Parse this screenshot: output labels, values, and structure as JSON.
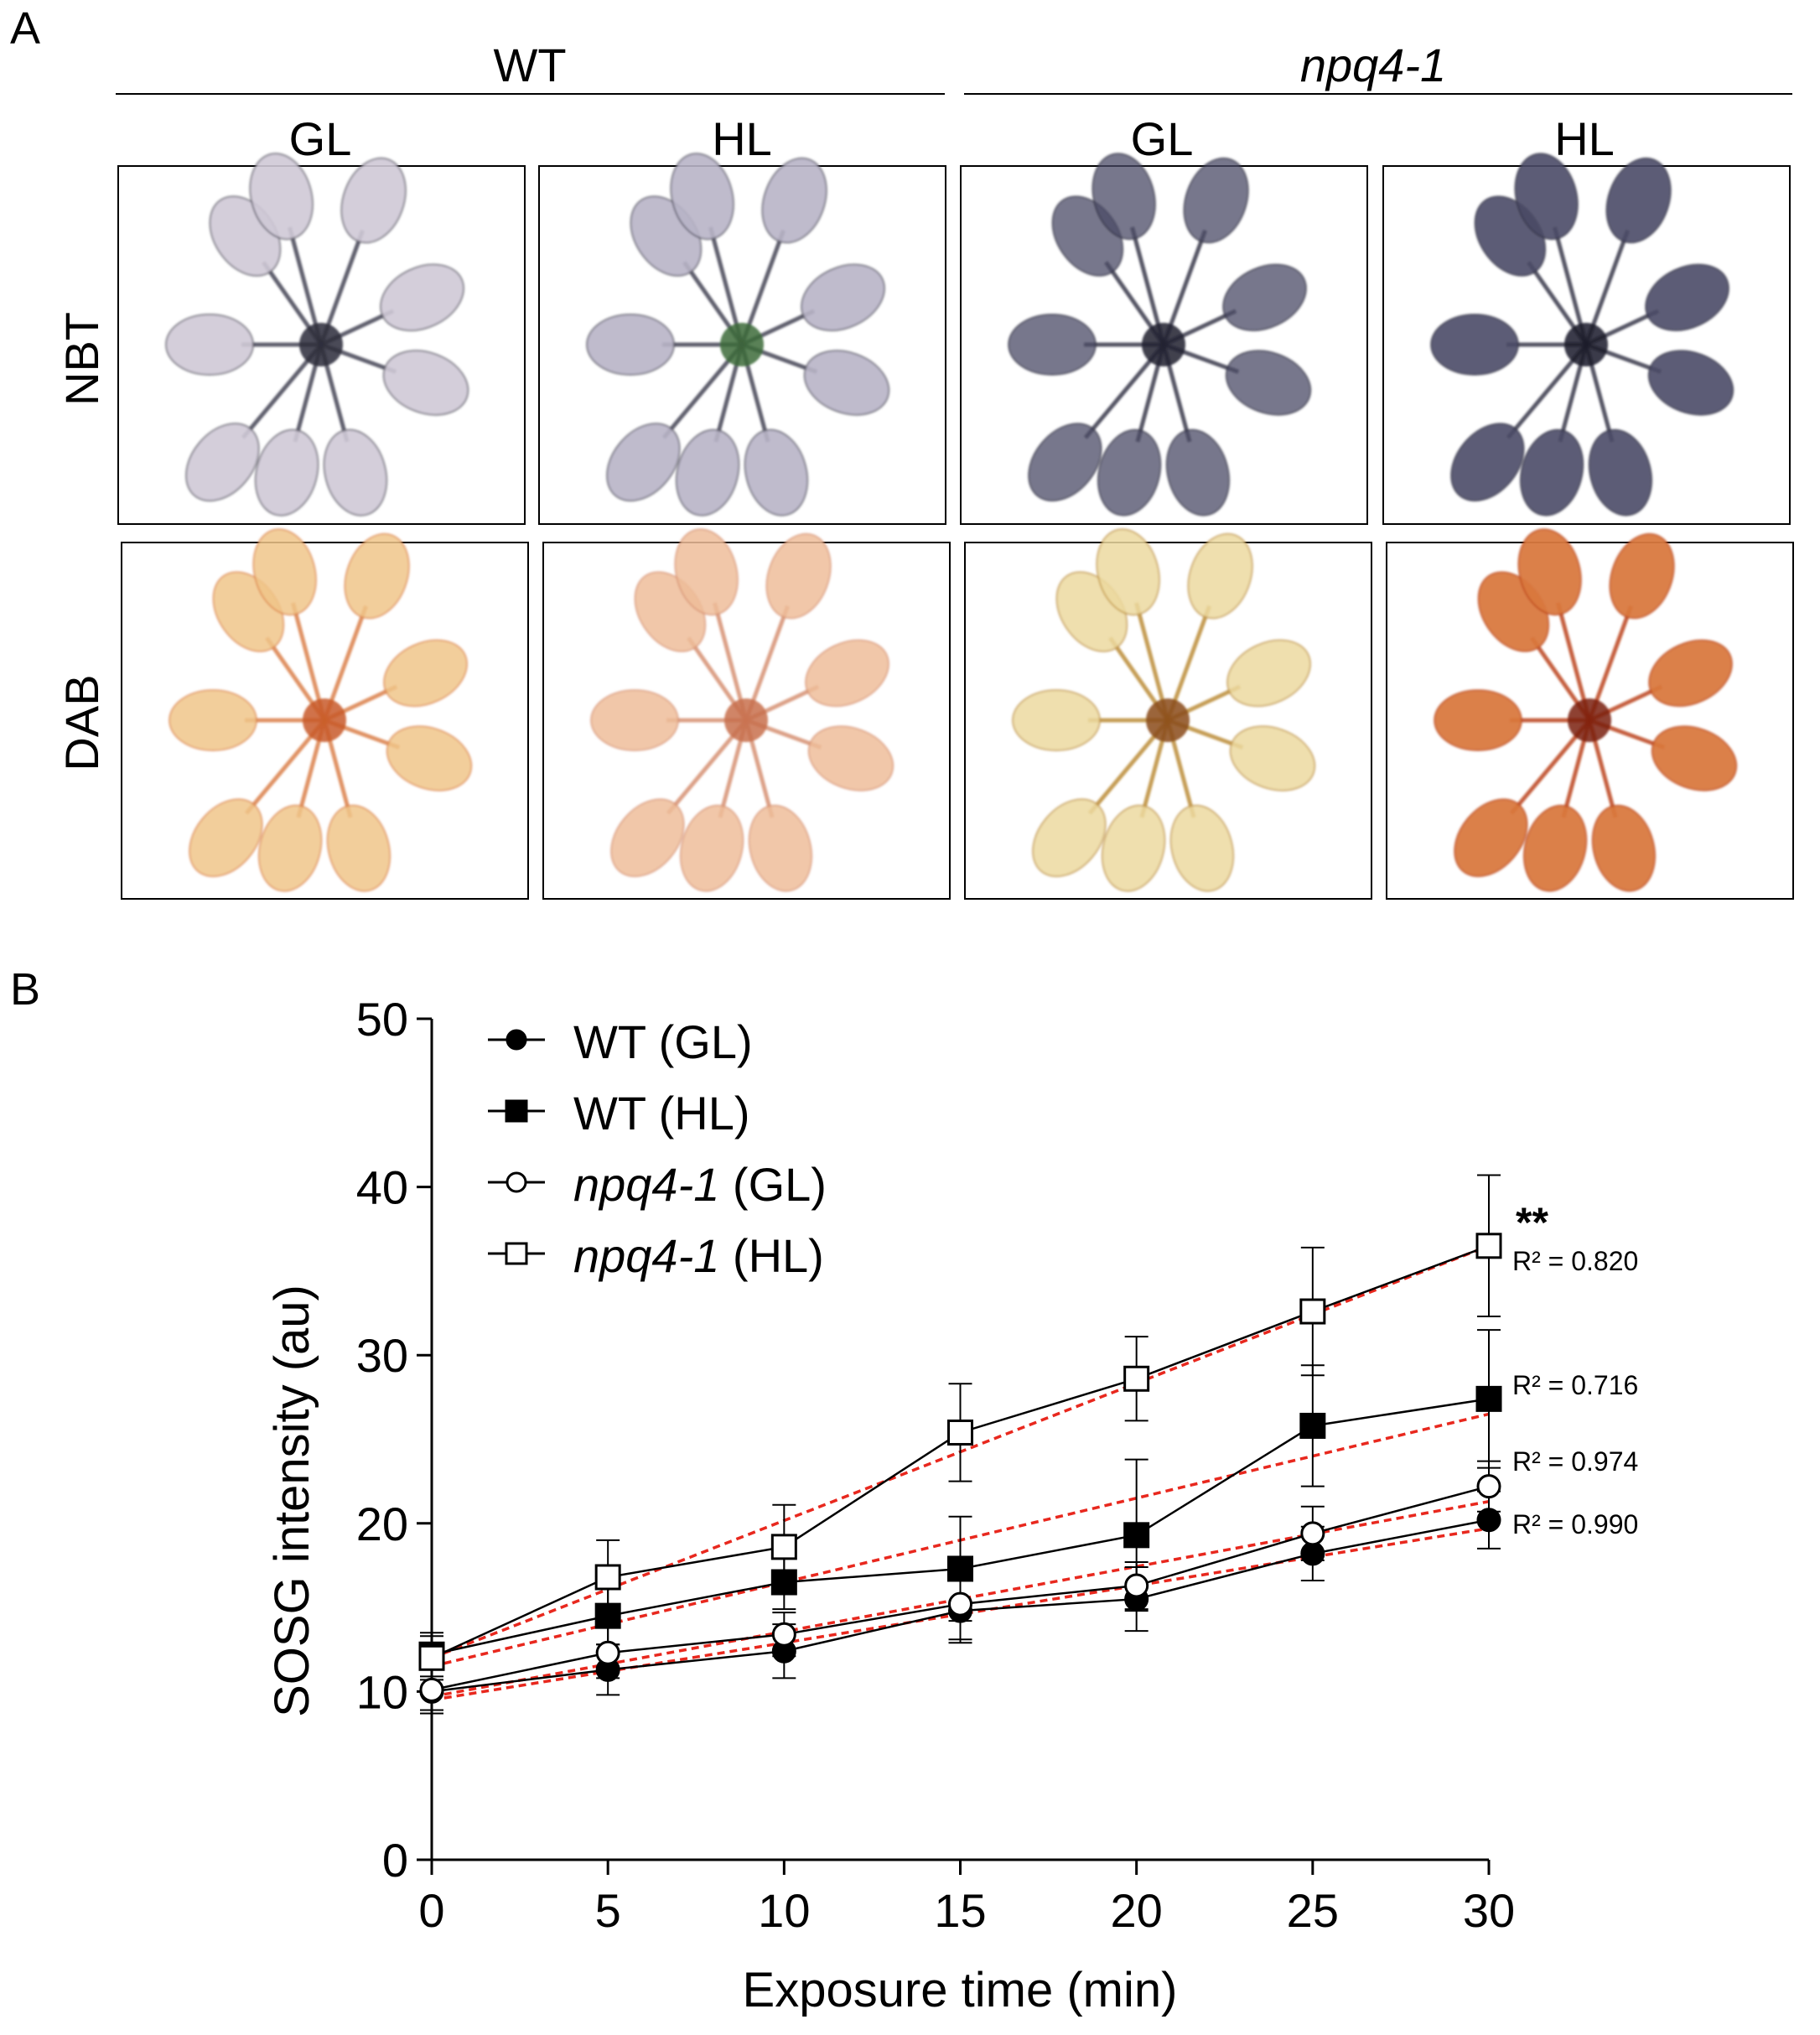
{
  "panel_a": {
    "label": "A",
    "genotypes": [
      {
        "name": "WT",
        "italic": false
      },
      {
        "name": "npq4-1",
        "italic": true
      }
    ],
    "conditions": [
      "GL",
      "HL",
      "GL",
      "HL"
    ],
    "stains": [
      "NBT",
      "DAB"
    ]
  },
  "panel_b": {
    "label": "B"
  },
  "colors": {
    "fit_line": "#e8281e",
    "series": "#000000",
    "nbt_stain": "#4a4a66",
    "dab_stain": "#d9783e",
    "dab_dark": "#b83a10",
    "dab_pale": "#ecd9a0"
  },
  "chart_data": {
    "type": "line",
    "xlabel": "Exposure time (min)",
    "ylabel": "SOSG intensity (au)",
    "xlim": [
      0,
      30
    ],
    "ylim": [
      0,
      50
    ],
    "xticks": [
      0,
      5,
      10,
      15,
      20,
      25,
      30
    ],
    "yticks": [
      0,
      10,
      20,
      30,
      40,
      50
    ],
    "legend_position": "top-left",
    "x": [
      0,
      5,
      10,
      15,
      20,
      25,
      30
    ],
    "series": [
      {
        "name": "WT (GL)",
        "label_main": "WT",
        "label_suffix": " (GL)",
        "italic": false,
        "marker": "circle",
        "filled": true,
        "values": [
          10.0,
          11.3,
          12.4,
          14.8,
          15.5,
          18.2,
          20.2
        ],
        "errors": [
          1.3,
          1.5,
          1.6,
          1.9,
          1.9,
          1.6,
          1.7
        ],
        "fit": {
          "start": 9.5,
          "end": 19.7
        },
        "r2": "R² = 0.990"
      },
      {
        "name": "WT (HL)",
        "label_main": "WT",
        "label_suffix": " (HL)",
        "italic": false,
        "marker": "square",
        "filled": true,
        "values": [
          12.2,
          14.5,
          16.5,
          17.3,
          19.3,
          25.8,
          27.4
        ],
        "errors": [
          1.3,
          1.7,
          1.6,
          3.1,
          4.5,
          3.6,
          4.1
        ],
        "fit": {
          "start": 11.5,
          "end": 26.5
        },
        "r2": "R² = 0.716"
      },
      {
        "name": "npq4-1 (GL)",
        "label_main": "npq4-1",
        "label_suffix": " (GL)",
        "italic": true,
        "marker": "circle",
        "filled": false,
        "values": [
          10.1,
          12.3,
          13.4,
          15.2,
          16.3,
          19.4,
          22.2
        ],
        "errors": [
          1.2,
          1.5,
          1.3,
          2.1,
          1.4,
          1.6,
          1.5
        ],
        "fit": {
          "start": 9.7,
          "end": 21.3
        },
        "r2": "R² = 0.974"
      },
      {
        "name": "npq4-1 (HL)",
        "label_main": "npq4-1",
        "label_suffix": " (HL)",
        "italic": true,
        "marker": "square",
        "filled": false,
        "values": [
          12.0,
          16.8,
          18.6,
          25.4,
          28.6,
          32.6,
          36.5
        ],
        "errors": [
          1.3,
          2.2,
          2.5,
          2.9,
          2.5,
          3.8,
          4.2
        ],
        "fit": {
          "start": 12.0,
          "end": 36.5
        },
        "r2": "R² = 0.820",
        "annotation": "**"
      }
    ]
  }
}
